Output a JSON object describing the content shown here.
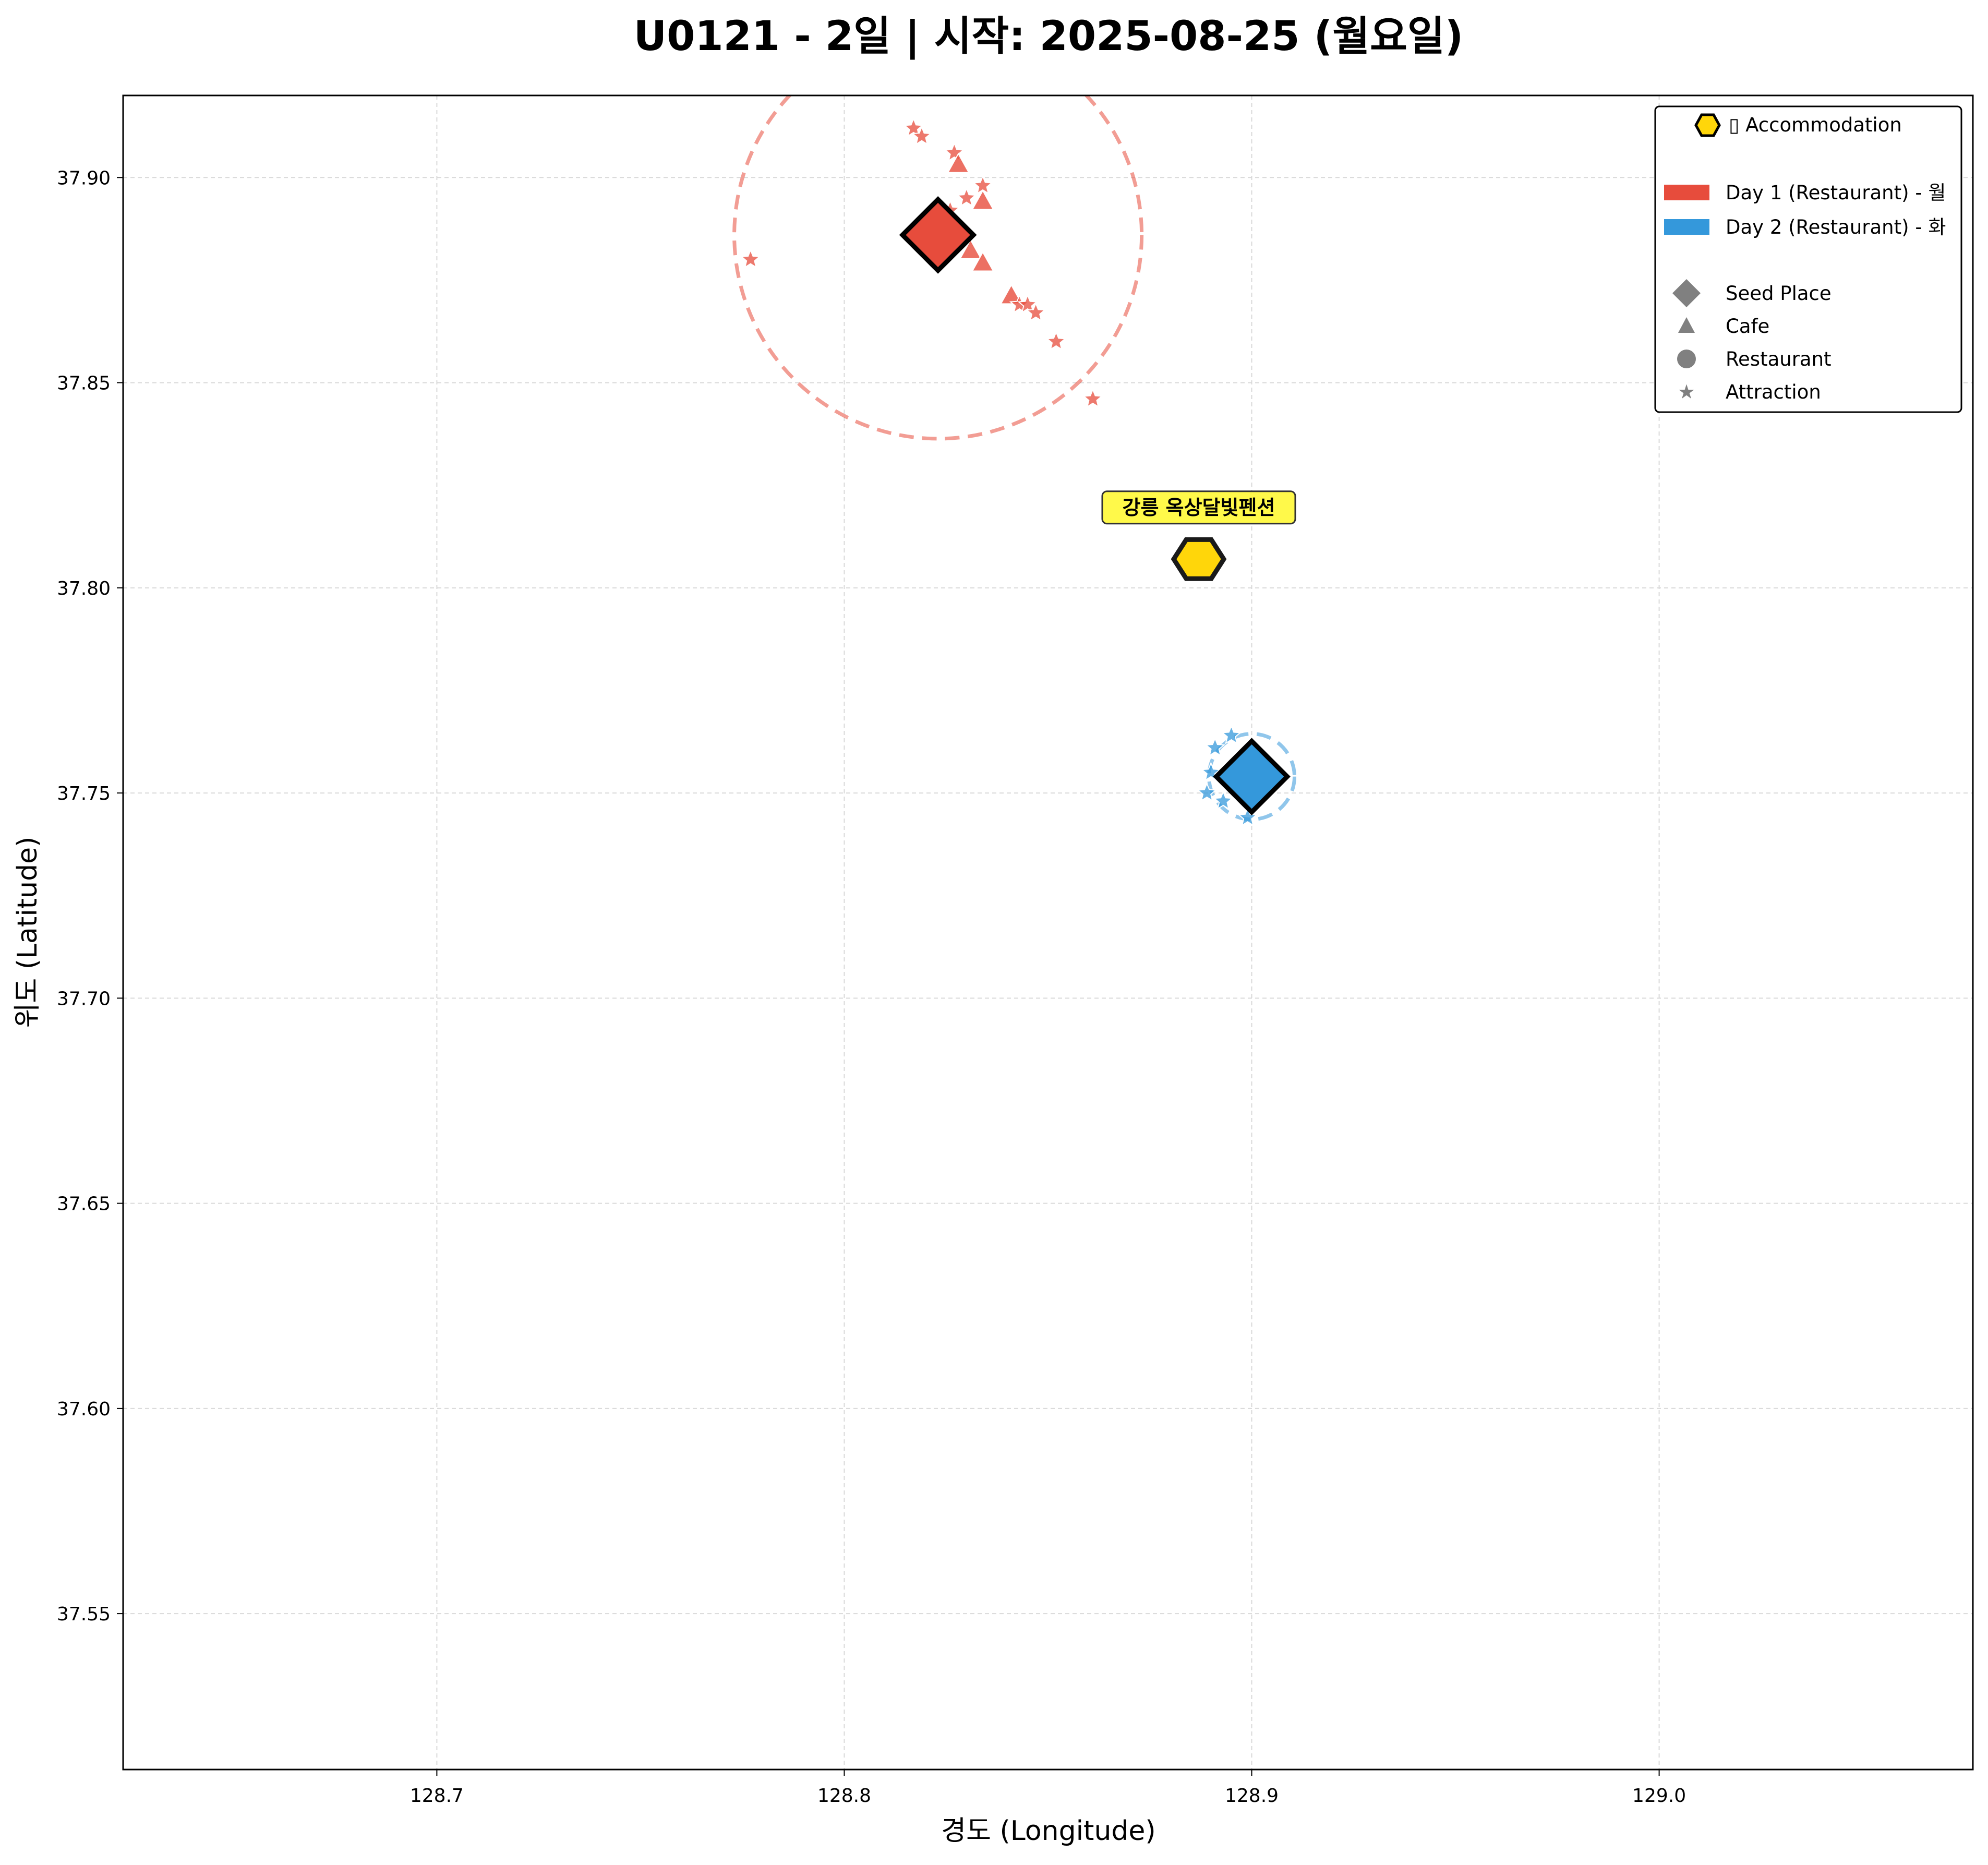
{
  "chart_data": {
    "type": "scatter",
    "title": "U0121 - 2일 | 시작: 2025-08-25 (월요일)",
    "xlabel": "경도 (Longitude)",
    "ylabel": "위도 (Latitude)",
    "xlim": [
      128.623,
      129.077
    ],
    "ylim": [
      37.512,
      37.92
    ],
    "grid": true,
    "x_ticks": [
      "128.7",
      "128.8",
      "128.9",
      "129.0"
    ],
    "x_tick_values": [
      128.7,
      128.8,
      128.9,
      129.0
    ],
    "y_ticks": [
      "37.55",
      "37.60",
      "37.65",
      "37.70",
      "37.75",
      "37.80",
      "37.85",
      "37.90"
    ],
    "y_tick_values": [
      37.55,
      37.6,
      37.65,
      37.7,
      37.75,
      37.8,
      37.85,
      37.9
    ],
    "accommodation": {
      "name": "강릉 옥상달빛펜션",
      "x": 128.887,
      "y": 37.807,
      "color": "#FFD60A"
    },
    "series": [
      {
        "name": "Day 1 (Restaurant) - 월",
        "color": "#E74C3C",
        "seed": {
          "x": 128.823,
          "y": 37.886
        },
        "radius_lon": 0.05,
        "points": [
          {
            "kind": "star",
            "x": 128.817,
            "y": 37.912
          },
          {
            "kind": "star",
            "x": 128.819,
            "y": 37.91
          },
          {
            "kind": "star",
            "x": 128.827,
            "y": 37.906
          },
          {
            "kind": "triangle",
            "x": 128.828,
            "y": 37.903
          },
          {
            "kind": "star",
            "x": 128.834,
            "y": 37.898
          },
          {
            "kind": "star",
            "x": 128.83,
            "y": 37.895
          },
          {
            "kind": "triangle",
            "x": 128.834,
            "y": 37.894
          },
          {
            "kind": "star",
            "x": 128.826,
            "y": 37.892
          },
          {
            "kind": "triangle",
            "x": 128.831,
            "y": 37.882
          },
          {
            "kind": "triangle",
            "x": 128.834,
            "y": 37.879
          },
          {
            "kind": "star",
            "x": 128.777,
            "y": 37.88
          },
          {
            "kind": "triangle",
            "x": 128.841,
            "y": 37.871
          },
          {
            "kind": "star",
            "x": 128.843,
            "y": 37.869
          },
          {
            "kind": "star",
            "x": 128.845,
            "y": 37.869
          },
          {
            "kind": "star",
            "x": 128.847,
            "y": 37.867
          },
          {
            "kind": "star",
            "x": 128.852,
            "y": 37.86
          },
          {
            "kind": "star",
            "x": 128.861,
            "y": 37.846
          }
        ]
      },
      {
        "name": "Day 2 (Restaurant) - 화",
        "color": "#3498DB",
        "seed": {
          "x": 128.9,
          "y": 37.754
        },
        "radius_lon": 0.0105,
        "points": [
          {
            "kind": "star",
            "x": 128.895,
            "y": 37.764
          },
          {
            "kind": "star",
            "x": 128.891,
            "y": 37.761
          },
          {
            "kind": "star",
            "x": 128.89,
            "y": 37.755
          },
          {
            "kind": "star",
            "x": 128.889,
            "y": 37.75
          },
          {
            "kind": "star",
            "x": 128.893,
            "y": 37.748
          },
          {
            "kind": "star",
            "x": 128.899,
            "y": 37.744
          }
        ]
      }
    ],
    "legend": {
      "position": "top-right",
      "accommodation_label": "▯ Accommodation",
      "day_labels": [
        "Day 1 (Restaurant) - 월",
        "Day 2 (Restaurant) - 화"
      ],
      "marker_labels": [
        "Seed Place",
        "Cafe",
        "Restaurant",
        "Attraction"
      ]
    }
  }
}
